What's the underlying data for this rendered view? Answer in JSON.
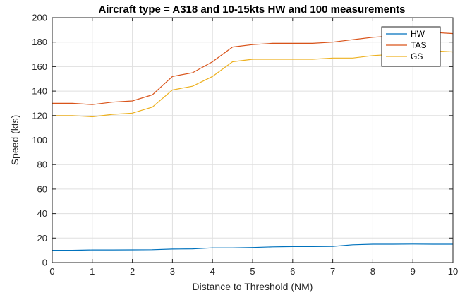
{
  "chart_data": {
    "type": "line",
    "title": "Aircraft type = A318 and 10-15kts HW and 100 measurements",
    "xlabel": "Distance to Threshold (NM)",
    "ylabel": "Speed (kts)",
    "xlim": [
      0,
      10
    ],
    "ylim": [
      0,
      200
    ],
    "xticks": [
      0,
      1,
      2,
      3,
      4,
      5,
      6,
      7,
      8,
      9,
      10
    ],
    "yticks": [
      0,
      20,
      40,
      60,
      80,
      100,
      120,
      140,
      160,
      180,
      200
    ],
    "grid": true,
    "legend_position": "top-right",
    "series": [
      {
        "name": "HW",
        "color": "#0072BD",
        "x": [
          0,
          0.5,
          1,
          1.5,
          2,
          2.5,
          3,
          3.5,
          4,
          4.5,
          5,
          5.5,
          6,
          6.5,
          7,
          7.5,
          8,
          8.5,
          9,
          9.5,
          10
        ],
        "y": [
          10,
          10,
          10.3,
          10.3,
          10.4,
          10.5,
          11,
          11.2,
          12,
          12,
          12.3,
          12.8,
          13,
          13,
          13.2,
          14.5,
          15,
          15,
          15.1,
          15,
          15
        ]
      },
      {
        "name": "TAS",
        "color": "#D95319",
        "x": [
          0,
          0.5,
          1,
          1.5,
          2,
          2.5,
          3,
          3.5,
          4,
          4.5,
          5,
          5.5,
          6,
          6.5,
          7,
          7.5,
          8,
          8.5,
          9,
          9.5,
          10
        ],
        "y": [
          130,
          130,
          129,
          131,
          132,
          137,
          152,
          155,
          164,
          176,
          178,
          179,
          179,
          179,
          180,
          182,
          184,
          185,
          187,
          188,
          187
        ]
      },
      {
        "name": "GS",
        "color": "#EDB120",
        "x": [
          0,
          0.5,
          1,
          1.5,
          2,
          2.5,
          3,
          3.5,
          4,
          4.5,
          5,
          5.5,
          6,
          6.5,
          7,
          7.5,
          8,
          8.5,
          9,
          9.5,
          10
        ],
        "y": [
          120,
          120,
          119,
          121,
          122,
          127,
          141,
          144,
          152,
          164,
          166,
          166,
          166,
          166,
          167,
          167,
          169,
          170,
          171,
          173,
          172
        ]
      }
    ]
  }
}
